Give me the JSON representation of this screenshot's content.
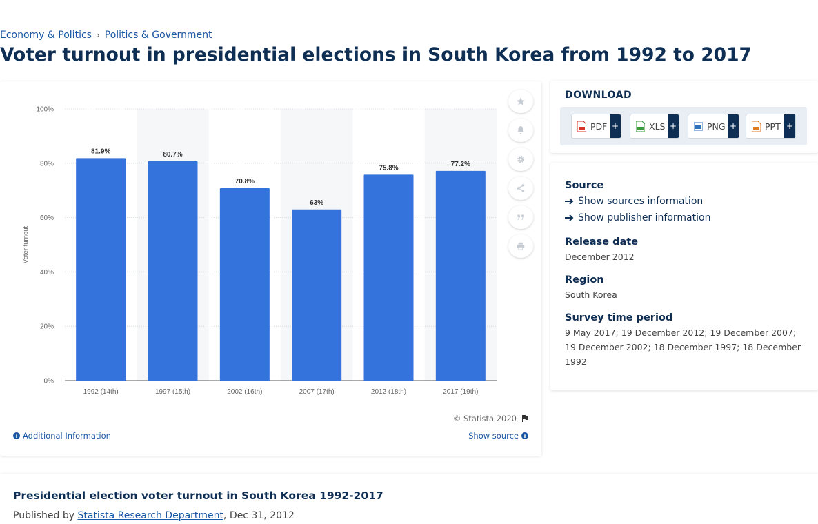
{
  "breadcrumb": {
    "items": [
      "Economy & Politics",
      "Politics & Government"
    ],
    "separator": "›"
  },
  "page": {
    "title": "Voter turnout in presidential elections in South Korea from 1992 to 2017"
  },
  "chart_data": {
    "type": "bar",
    "categories": [
      "1992 (14th)",
      "1997 (15th)",
      "2002 (16th)",
      "2007 (17th)",
      "2012 (18th)",
      "2017 (19th)"
    ],
    "values": [
      81.9,
      80.7,
      70.8,
      63,
      75.8,
      77.2
    ],
    "value_labels": [
      "81.9%",
      "80.7%",
      "70.8%",
      "63%",
      "75.8%",
      "77.2%"
    ],
    "ylabel": "Voter turnout",
    "ylim": [
      0,
      100
    ],
    "yticks": [
      0,
      20,
      40,
      60,
      80,
      100
    ],
    "ytick_labels": [
      "0%",
      "20%",
      "40%",
      "60%",
      "80%",
      "100%"
    ],
    "bar_color": "#3472dc",
    "grid": true
  },
  "chart_footer": {
    "copyright": "© Statista 2020",
    "additional_info": "Additional Information",
    "show_source": "Show source"
  },
  "tools": [
    "star-icon",
    "bell-icon",
    "gear-icon",
    "share-icon",
    "quote-icon",
    "print-icon"
  ],
  "download": {
    "title": "DOWNLOAD",
    "buttons": [
      {
        "label": "PDF",
        "color": "#d9342b"
      },
      {
        "label": "XLS",
        "color": "#3a9b3a"
      },
      {
        "label": "PNG",
        "color": "#2f6fc0"
      },
      {
        "label": "PPT",
        "color": "#e07a1f"
      }
    ],
    "plus": "+"
  },
  "info": {
    "source_heading": "Source",
    "show_sources": "Show sources information",
    "show_publisher": "Show publisher information",
    "release_heading": "Release date",
    "release_value": "December 2012",
    "region_heading": "Region",
    "region_value": "South Korea",
    "survey_heading": "Survey time period",
    "survey_value": "9 May 2017; 19 December 2012; 19 December 2007; 19 December 2002; 18 December 1997; 18 December 1992"
  },
  "footer": {
    "title": "Presidential election voter turnout in South Korea 1992-2017",
    "published_by": "Published by",
    "department": "Statista Research Department",
    "date": ", Dec 31, 2012"
  }
}
